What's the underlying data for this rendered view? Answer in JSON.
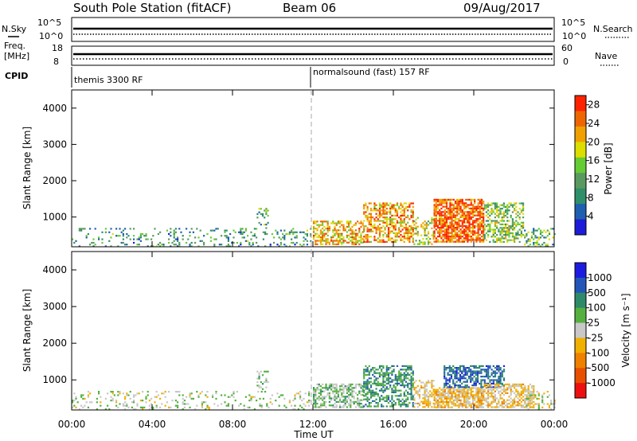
{
  "header": {
    "station": "South Pole Station (fitACF)",
    "beam": "Beam 06",
    "date": "09/Aug/2017"
  },
  "top_panels": {
    "nsky_label": "N.Sky",
    "nsky_ticks": [
      "10^5",
      "10^0"
    ],
    "nsearch_label": "N.Search",
    "nsearch_ticks": [
      "10^5",
      "10^0"
    ],
    "freq_label_1": "Freq.",
    "freq_label_2": "[MHz]",
    "freq_ticks": [
      "18",
      "8"
    ],
    "nave_label": "Nave",
    "nave_ticks": [
      "60",
      "0"
    ],
    "cpid_label": "CPID",
    "cpid_1": "themis 3300 RF",
    "cpid_2": "normalsound (fast) 157 RF"
  },
  "colors": {
    "power_scale": [
      "#1c1cd8",
      "#1f5fb0",
      "#2f8f6a",
      "#5a9a60",
      "#66cc33",
      "#dddd00",
      "#f0a000",
      "#ee6600",
      "#ff2200"
    ],
    "velocity_scale": [
      "#1c1ce0",
      "#2456b8",
      "#2f8a6a",
      "#55b040",
      "#c8c8c8",
      "#f0b000",
      "#f08000",
      "#e85000",
      "#ee1010"
    ]
  },
  "chart_data": [
    {
      "type": "heatmap",
      "panel": "power",
      "ylabel": "Slant Range [km]",
      "x_ticks": [
        "00:00",
        "04:00",
        "08:00",
        "12:00",
        "16:00",
        "20:00",
        "00:00"
      ],
      "y_ticks": [
        "1000",
        "2000",
        "3000",
        "4000"
      ],
      "xlim_hours": [
        0,
        24
      ],
      "ylim_km": [
        180,
        4500
      ],
      "colorbar": {
        "label": "Power [dB]",
        "ticks": [
          "4",
          "8",
          "12",
          "16",
          "20",
          "24",
          "28"
        ],
        "range": [
          0,
          30
        ]
      },
      "echo_regions": [
        {
          "t0": 0.0,
          "t1": 11.9,
          "r0": 200,
          "r1": 700,
          "density": 0.18,
          "value": 10
        },
        {
          "t0": 9.2,
          "t1": 9.8,
          "r0": 700,
          "r1": 1250,
          "density": 0.35,
          "value": 12
        },
        {
          "t0": 12.0,
          "t1": 14.5,
          "r0": 250,
          "r1": 900,
          "density": 0.55,
          "value": 20
        },
        {
          "t0": 14.5,
          "t1": 17.0,
          "r0": 300,
          "r1": 1400,
          "density": 0.55,
          "value": 22
        },
        {
          "t0": 17.0,
          "t1": 18.0,
          "r0": 250,
          "r1": 1000,
          "density": 0.35,
          "value": 16
        },
        {
          "t0": 18.0,
          "t1": 20.5,
          "r0": 300,
          "r1": 1500,
          "density": 0.75,
          "value": 26
        },
        {
          "t0": 20.5,
          "t1": 22.5,
          "r0": 300,
          "r1": 1400,
          "density": 0.5,
          "value": 14
        },
        {
          "t0": 22.5,
          "t1": 24.0,
          "r0": 200,
          "r1": 700,
          "density": 0.25,
          "value": 12
        }
      ]
    },
    {
      "type": "heatmap",
      "panel": "velocity",
      "ylabel": "Slant Range [km]",
      "xlabel": "Time UT",
      "x_ticks": [
        "00:00",
        "04:00",
        "08:00",
        "12:00",
        "16:00",
        "20:00",
        "00:00"
      ],
      "y_ticks": [
        "1000",
        "2000",
        "3000",
        "4000"
      ],
      "xlim_hours": [
        0,
        24
      ],
      "ylim_km": [
        180,
        4500
      ],
      "colorbar": {
        "label": "Velocity [m s⁻¹]",
        "ticks": [
          "1000",
          "500",
          "100",
          "25",
          "-25",
          "-100",
          "-500",
          "-1000"
        ],
        "range": [
          -1000,
          1000
        ]
      },
      "echo_regions": [
        {
          "t0": 0.0,
          "t1": 11.9,
          "r0": 200,
          "r1": 700,
          "density": 0.18,
          "value": 60
        },
        {
          "t0": 9.2,
          "t1": 9.8,
          "r0": 700,
          "r1": 1250,
          "density": 0.35,
          "value": 120
        },
        {
          "t0": 12.0,
          "t1": 14.5,
          "r0": 250,
          "r1": 900,
          "density": 0.55,
          "value": 150
        },
        {
          "t0": 14.5,
          "t1": 17.0,
          "r0": 300,
          "r1": 1400,
          "density": 0.55,
          "value": 400
        },
        {
          "t0": 17.0,
          "t1": 18.0,
          "r0": 250,
          "r1": 1000,
          "density": 0.45,
          "value": -150
        },
        {
          "t0": 18.0,
          "t1": 20.5,
          "r0": 250,
          "r1": 800,
          "density": 0.8,
          "value": -180
        },
        {
          "t0": 18.5,
          "t1": 21.5,
          "r0": 800,
          "r1": 1400,
          "density": 0.6,
          "value": 600
        },
        {
          "t0": 20.5,
          "t1": 23.0,
          "r0": 250,
          "r1": 900,
          "density": 0.6,
          "value": -150
        },
        {
          "t0": 22.5,
          "t1": 24.0,
          "r0": 200,
          "r1": 700,
          "density": 0.25,
          "value": 40
        }
      ]
    }
  ]
}
